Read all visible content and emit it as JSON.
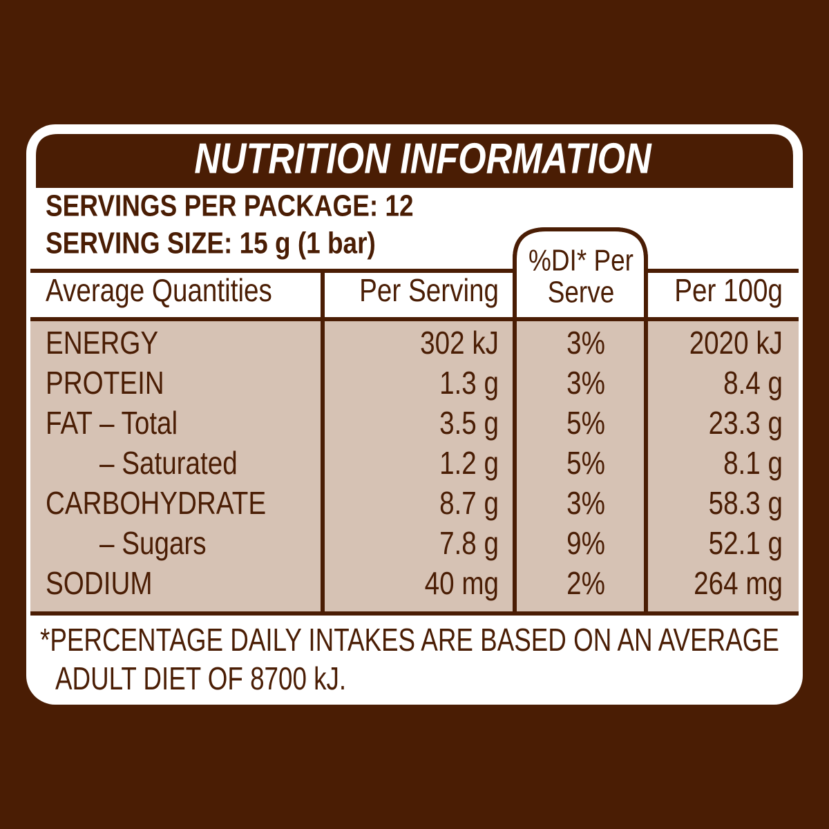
{
  "header": {
    "title": "NUTRITION INFORMATION",
    "servings": "SERVINGS PER PACKAGE: 12",
    "serving_size": "SERVING SIZE: 15 g (1 bar)"
  },
  "table": {
    "columns": [
      "Average Quantities",
      "Per Serving",
      [
        "%DI* Per",
        "Serve"
      ],
      "Per 100g"
    ],
    "rows": [
      [
        "ENERGY",
        "302 kJ",
        "3%",
        "2020 kJ"
      ],
      [
        "PROTEIN",
        "1.3 g",
        "3%",
        "8.4 g"
      ],
      [
        "FAT – Total",
        "3.5 g",
        "5%",
        "23.3 g"
      ],
      [
        "– Saturated",
        "1.2 g",
        "5%",
        "8.1 g"
      ],
      [
        "CARBOHYDRATE",
        "8.7 g",
        "3%",
        "58.3 g"
      ],
      [
        "– Sugars",
        "7.8 g",
        "9%",
        "52.1 g"
      ],
      [
        "SODIUM",
        "40 mg",
        "2%",
        "264 mg"
      ]
    ]
  },
  "footnote": [
    "*PERCENTAGE DAILY INTAKES ARE BASED ON AN AVERAGE",
    "ADULT DIET OF 8700 kJ."
  ]
}
